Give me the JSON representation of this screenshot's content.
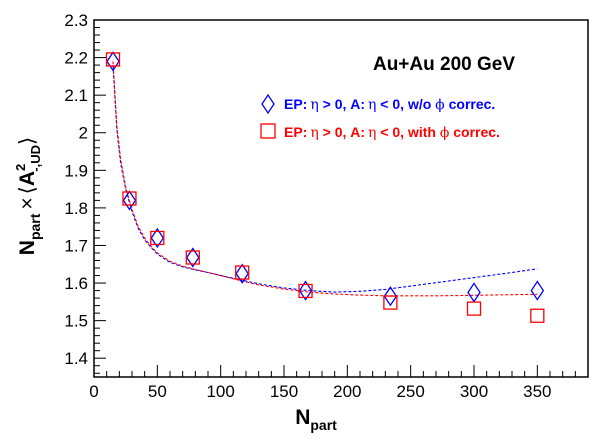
{
  "chart_data": {
    "type": "scatter",
    "title": "Au+Au 200 GeV",
    "xlabel": "N",
    "xlabel_sub": "part",
    "ylabel": {
      "main": "N",
      "sub1": "part",
      "times": "×",
      "open": "⟨",
      "A": "A",
      "sup": "2",
      "sub2": "-,UD",
      "close": "⟩"
    },
    "xlim": [
      0,
      390
    ],
    "ylim": [
      1.35,
      2.3
    ],
    "xticks": [
      0,
      50,
      100,
      150,
      200,
      250,
      300,
      350
    ],
    "yticks": [
      1.4,
      1.5,
      1.6,
      1.7,
      1.8,
      1.9,
      2.0,
      2.1,
      2.2,
      2.3
    ],
    "ytick_labels": [
      "1.4",
      "1.5",
      "1.6",
      "1.7",
      "1.8",
      "1.9",
      "2",
      "2.1",
      "2.2",
      "2.3"
    ],
    "grid": false,
    "legend_position": "top-right",
    "series": [
      {
        "name": "EP: η > 0, A: η < 0, w/o ϕ correc.",
        "marker": "diamond-open",
        "color": "#0000ff",
        "x": [
          15,
          28,
          50,
          78,
          117,
          167,
          234,
          300,
          350
        ],
        "y": [
          2.19,
          1.82,
          1.72,
          1.668,
          1.625,
          1.58,
          1.565,
          1.575,
          1.58
        ],
        "fit_x": [
          15,
          18,
          21,
          25,
          30,
          35,
          40,
          45,
          50,
          60,
          70,
          80,
          90,
          100,
          115,
          130,
          150,
          170,
          190,
          210,
          230,
          250,
          270,
          290,
          310,
          330,
          350
        ],
        "fit_y": [
          2.18,
          2.01,
          1.92,
          1.85,
          1.79,
          1.745,
          1.715,
          1.695,
          1.677,
          1.655,
          1.643,
          1.635,
          1.628,
          1.62,
          1.609,
          1.598,
          1.587,
          1.58,
          1.576,
          1.578,
          1.583,
          1.592,
          1.601,
          1.61,
          1.619,
          1.628,
          1.638
        ]
      },
      {
        "name": "EP: η > 0, A: η < 0, with ϕ correc.",
        "marker": "square-open",
        "color": "#ff0000",
        "x": [
          15,
          28,
          50,
          78,
          117,
          167,
          234,
          300,
          350
        ],
        "y": [
          2.195,
          1.825,
          1.72,
          1.668,
          1.628,
          1.579,
          1.548,
          1.532,
          1.513
        ],
        "fit_x": [
          15,
          18,
          21,
          25,
          30,
          35,
          40,
          45,
          50,
          60,
          70,
          80,
          90,
          100,
          115,
          130,
          150,
          170,
          190,
          210,
          230,
          250,
          270,
          290,
          310,
          330,
          350
        ],
        "fit_y": [
          2.19,
          2.02,
          1.93,
          1.855,
          1.795,
          1.75,
          1.72,
          1.698,
          1.68,
          1.658,
          1.645,
          1.636,
          1.628,
          1.62,
          1.607,
          1.595,
          1.584,
          1.576,
          1.571,
          1.568,
          1.566,
          1.566,
          1.566,
          1.567,
          1.568,
          1.569,
          1.57
        ]
      }
    ],
    "legend_parts": [
      {
        "ep": "EP:",
        "eta": "η",
        "gt": " > 0, A:",
        "lt": " < 0, w/o ",
        "phi": "ϕ",
        "end": " correc."
      },
      {
        "ep": "EP:",
        "eta": "η",
        "gt": " > 0, A:",
        "lt": " < 0, with ",
        "phi": "ϕ",
        "end": " correc."
      }
    ]
  }
}
